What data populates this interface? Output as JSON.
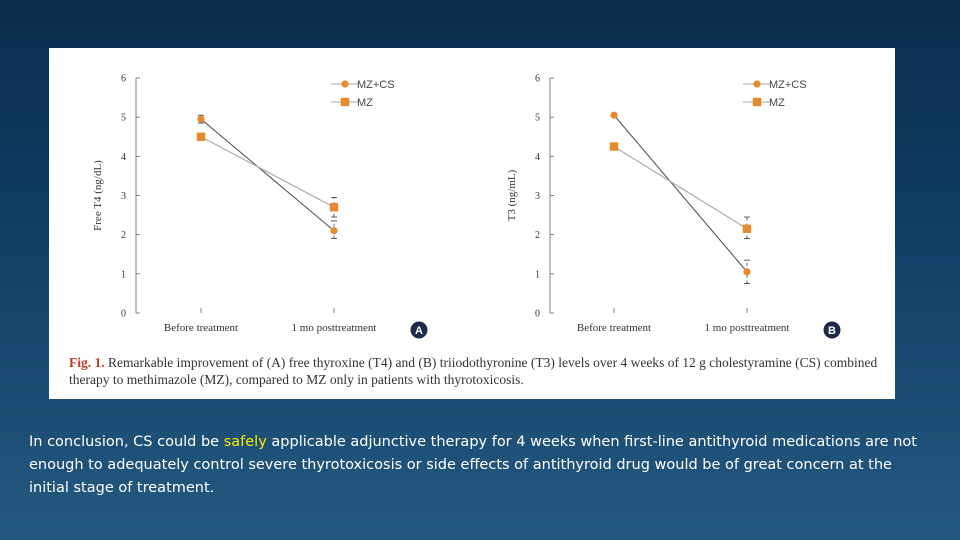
{
  "chart_data": [
    {
      "type": "line",
      "panel_label": "A",
      "ylabel": "Free T4 (ng/dL)",
      "categories": [
        "Before treatment",
        "1 mo posttreatment"
      ],
      "ylim": [
        0,
        6
      ],
      "yticks": [
        "0",
        "1",
        "2",
        "3",
        "4",
        "5",
        "6"
      ],
      "legend_position": "top-right",
      "series": [
        {
          "name": "MZ+CS",
          "marker": "circle",
          "values": [
            4.95,
            2.1
          ],
          "error_low": [
            4.85,
            1.9
          ],
          "error_high": [
            5.05,
            2.35
          ]
        },
        {
          "name": "MZ",
          "marker": "square",
          "values": [
            4.5,
            2.7
          ],
          "error_low": [
            4.5,
            2.45
          ],
          "error_high": [
            4.5,
            2.95
          ]
        }
      ]
    },
    {
      "type": "line",
      "panel_label": "B",
      "ylabel": "T3 (ng/mL)",
      "categories": [
        "Before treatment",
        "1 mo posttreatment"
      ],
      "ylim": [
        0,
        6
      ],
      "yticks": [
        "0",
        "1",
        "2",
        "3",
        "4",
        "5",
        "6"
      ],
      "legend_position": "top-right",
      "series": [
        {
          "name": "MZ+CS",
          "marker": "circle",
          "values": [
            5.05,
            1.05
          ],
          "error_low": [
            5.05,
            0.75
          ],
          "error_high": [
            5.05,
            1.35
          ]
        },
        {
          "name": "MZ",
          "marker": "square",
          "values": [
            4.25,
            2.15
          ],
          "error_low": [
            4.25,
            1.9
          ],
          "error_high": [
            4.25,
            2.45
          ]
        }
      ]
    }
  ],
  "colors": {
    "marker_orange": "#e8892e",
    "line_combined": "#555555",
    "line_mz": "#aaaaaa",
    "panel_badge": "#1c2b4a",
    "highlight": "#ffea00"
  },
  "caption": {
    "label": "Fig. 1.",
    "text": "Remarkable improvement of (A) free thyroxine (T4) and (B) triiodothyronine (T3) levels over 4 weeks of 12 g cholestyramine (CS) combined therapy to methimazole (MZ), compared to MZ only in patients with thyrotoxicosis."
  },
  "conclusion": {
    "before": "In conclusion, CS could be ",
    "highlight": "safely",
    "after": " applicable adjunctive therapy for 4 weeks when first-line antithyroid medications are not enough to adequately control severe thyrotoxicosis or side effects of antithyroid drug would be of great concern at the initial stage of treatment."
  }
}
